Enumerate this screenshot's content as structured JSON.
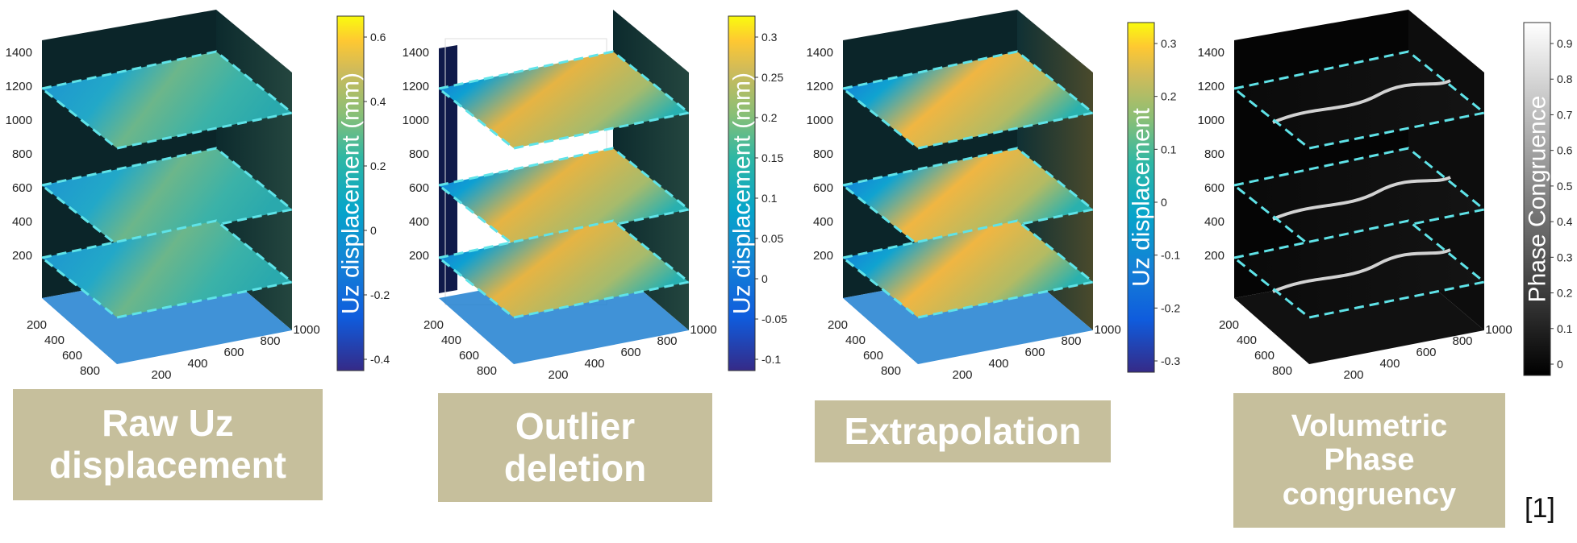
{
  "panels": [
    {
      "id": "raw",
      "title_lines": [
        "Raw Uz",
        "displacement"
      ],
      "colorbar": {
        "label": "Uz displacement (mm)",
        "ticks": [
          "0.6",
          "0.4",
          "0.2",
          "0",
          "-0.2",
          "-0.4"
        ],
        "colormap": "parula"
      },
      "z_ticks": [
        "1400",
        "1200",
        "1000",
        "800",
        "600",
        "400",
        "200"
      ],
      "y_ticks": [
        "200",
        "400",
        "600",
        "800"
      ],
      "x_ticks": [
        "200",
        "400",
        "600",
        "800",
        "1000"
      ]
    },
    {
      "id": "outlier",
      "title_lines": [
        "Outlier",
        "deletion"
      ],
      "colorbar": {
        "label": "Uz displacement (mm)",
        "ticks": [
          "0.3",
          "0.25",
          "0.2",
          "0.15",
          "0.1",
          "0.05",
          "0",
          "-0.05",
          "-0.1"
        ],
        "colormap": "parula"
      },
      "z_ticks": [
        "1400",
        "1200",
        "1000",
        "800",
        "600",
        "400",
        "200"
      ],
      "y_ticks": [
        "200",
        "400",
        "600",
        "800"
      ],
      "x_ticks": [
        "200",
        "400",
        "600",
        "800",
        "1000"
      ]
    },
    {
      "id": "extrap",
      "title_lines": [
        "Extrapolation"
      ],
      "colorbar": {
        "label": "Uz displacement",
        "ticks": [
          "0.3",
          "0.2",
          "0.1",
          "0",
          "-0.1",
          "-0.2",
          "-0.3"
        ],
        "colormap": "parula"
      },
      "z_ticks": [
        "1400",
        "1200",
        "1000",
        "800",
        "600",
        "400",
        "200"
      ],
      "y_ticks": [
        "200",
        "400",
        "600",
        "800"
      ],
      "x_ticks": [
        "200",
        "400",
        "600",
        "800",
        "1000"
      ]
    },
    {
      "id": "phase",
      "title_lines": [
        "Volumetric",
        "Phase",
        "congruency"
      ],
      "colorbar": {
        "label": "Phase Congruence",
        "ticks": [
          "0.9",
          "0.8",
          "0.7",
          "0.6",
          "0.5",
          "0.4",
          "0.3",
          "0.2",
          "0.1",
          "0"
        ],
        "colormap": "gray"
      },
      "z_ticks": [
        "1400",
        "1200",
        "1000",
        "800",
        "600",
        "400",
        "200"
      ],
      "y_ticks": [
        "200",
        "400",
        "600",
        "800"
      ],
      "x_ticks": [
        "200",
        "400",
        "600",
        "800",
        "1000"
      ]
    }
  ],
  "citation": "[1]",
  "colors": {
    "label_bg": "#c6bf9c",
    "slice_outline": "#5fe3e8",
    "volume_dark": "#0c2a2d"
  }
}
